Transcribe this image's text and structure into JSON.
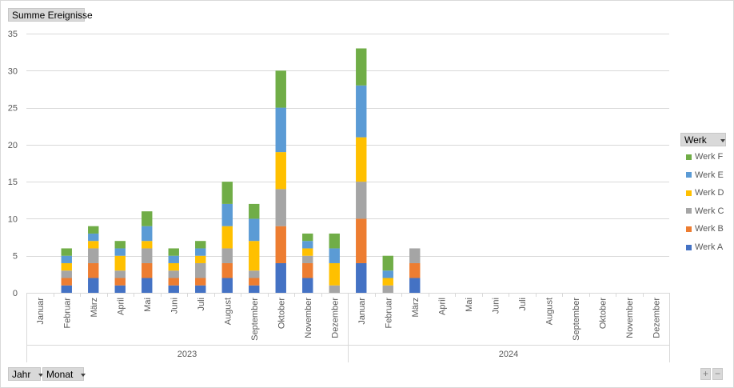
{
  "value_field": "Summe Ereignisse",
  "legend_field": "Werk",
  "axis_fields": [
    "Jahr",
    "Monat"
  ],
  "buttons": {
    "expand": "+",
    "collapse": "−"
  },
  "colors": {
    "Werk A": "#4472c4",
    "Werk B": "#ed7d31",
    "Werk C": "#a5a5a5",
    "Werk D": "#ffc000",
    "Werk E": "#5b9bd5",
    "Werk F": "#70ad47"
  },
  "chart_data": {
    "type": "bar",
    "stacked": true,
    "ylim": [
      0,
      35
    ],
    "yticks": [
      0,
      5,
      10,
      15,
      20,
      25,
      30,
      35
    ],
    "grid": true,
    "legend_position": "right",
    "groups": [
      {
        "name": "2023",
        "months": [
          "Januar",
          "Februar",
          "März",
          "April",
          "Mai",
          "Juni",
          "Juli",
          "August",
          "September",
          "Oktober",
          "November",
          "Dezember"
        ]
      },
      {
        "name": "2024",
        "months": [
          "Januar",
          "Februar",
          "März",
          "April",
          "Mai",
          "Juni",
          "Juli",
          "August",
          "September",
          "Oktober",
          "November",
          "Dezember"
        ]
      }
    ],
    "series": [
      {
        "name": "Werk A",
        "values": [
          0,
          1,
          2,
          1,
          2,
          1,
          1,
          2,
          1,
          4,
          2,
          0,
          4,
          0,
          2,
          0,
          0,
          0,
          0,
          0,
          0,
          0,
          0,
          0
        ]
      },
      {
        "name": "Werk B",
        "values": [
          0,
          1,
          2,
          1,
          2,
          1,
          1,
          2,
          1,
          5,
          2,
          0,
          6,
          0,
          2,
          0,
          0,
          0,
          0,
          0,
          0,
          0,
          0,
          0
        ]
      },
      {
        "name": "Werk C",
        "values": [
          0,
          1,
          2,
          1,
          2,
          1,
          2,
          2,
          1,
          5,
          1,
          1,
          5,
          1,
          2,
          0,
          0,
          0,
          0,
          0,
          0,
          0,
          0,
          0
        ]
      },
      {
        "name": "Werk D",
        "values": [
          0,
          1,
          1,
          2,
          1,
          1,
          1,
          3,
          4,
          5,
          1,
          3,
          6,
          1,
          0,
          0,
          0,
          0,
          0,
          0,
          0,
          0,
          0,
          0
        ]
      },
      {
        "name": "Werk E",
        "values": [
          0,
          1,
          1,
          1,
          2,
          1,
          1,
          3,
          3,
          6,
          1,
          2,
          7,
          1,
          0,
          0,
          0,
          0,
          0,
          0,
          0,
          0,
          0,
          0
        ]
      },
      {
        "name": "Werk F",
        "values": [
          0,
          1,
          1,
          1,
          2,
          1,
          1,
          3,
          2,
          5,
          1,
          2,
          5,
          2,
          0,
          0,
          0,
          0,
          0,
          0,
          0,
          0,
          0,
          0
        ]
      }
    ]
  }
}
